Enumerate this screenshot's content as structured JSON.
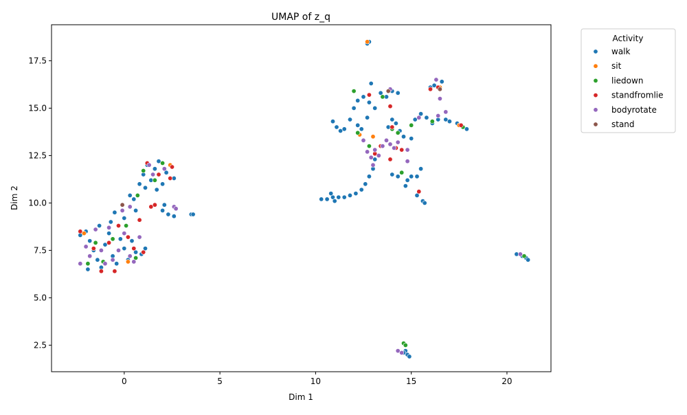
{
  "chart_data": {
    "type": "scatter",
    "title": "UMAP of z_q",
    "xlabel": "Dim 1",
    "ylabel": "Dim 2",
    "xlim": [
      -3.8,
      22.3
    ],
    "ylim": [
      1.1,
      19.4
    ],
    "xticks": [
      0,
      5,
      10,
      15,
      20
    ],
    "xtick_labels": [
      "0",
      "5",
      "10",
      "15",
      "20"
    ],
    "yticks": [
      2.5,
      5.0,
      7.5,
      10.0,
      12.5,
      15.0,
      17.5
    ],
    "ytick_labels": [
      "2.5",
      "5.0",
      "7.5",
      "10.0",
      "12.5",
      "15.0",
      "17.5"
    ],
    "grid": false,
    "legend": {
      "title": "Activity",
      "placement": "outside-upper-right"
    },
    "series": [
      {
        "name": "walk",
        "color": "#1f77b4",
        "points": [
          [
            -2.3,
            8.3
          ],
          [
            -2.0,
            8.5
          ],
          [
            -1.8,
            8.0
          ],
          [
            -1.6,
            7.5
          ],
          [
            -1.4,
            7.0
          ],
          [
            -1.2,
            6.6
          ],
          [
            -1.0,
            7.8
          ],
          [
            -0.8,
            8.4
          ],
          [
            -0.6,
            7.2
          ],
          [
            -0.4,
            6.8
          ],
          [
            -0.2,
            8.1
          ],
          [
            0.0,
            7.6
          ],
          [
            0.2,
            7.0
          ],
          [
            0.4,
            8.0
          ],
          [
            0.6,
            7.4
          ],
          [
            0.9,
            7.3
          ],
          [
            1.1,
            7.6
          ],
          [
            -1.9,
            6.5
          ],
          [
            -1.3,
            8.8
          ],
          [
            -0.7,
            9.0
          ],
          [
            -0.5,
            9.5
          ],
          [
            0.0,
            9.2
          ],
          [
            0.3,
            9.8
          ],
          [
            0.5,
            10.2
          ],
          [
            0.3,
            10.4
          ],
          [
            0.6,
            9.6
          ],
          [
            0.8,
            11.0
          ],
          [
            1.0,
            11.5
          ],
          [
            1.2,
            12.0
          ],
          [
            1.4,
            11.2
          ],
          [
            1.6,
            11.8
          ],
          [
            1.8,
            12.2
          ],
          [
            2.0,
            11.0
          ],
          [
            2.2,
            11.6
          ],
          [
            2.4,
            12.0
          ],
          [
            2.6,
            11.3
          ],
          [
            1.1,
            10.8
          ],
          [
            1.7,
            10.7
          ],
          [
            2.0,
            9.6
          ],
          [
            2.3,
            9.4
          ],
          [
            2.6,
            9.3
          ],
          [
            2.1,
            9.9
          ],
          [
            3.5,
            9.4
          ],
          [
            3.6,
            9.4
          ],
          [
            10.3,
            10.2
          ],
          [
            10.6,
            10.2
          ],
          [
            10.9,
            10.3
          ],
          [
            11.2,
            10.3
          ],
          [
            11.5,
            10.3
          ],
          [
            11.8,
            10.4
          ],
          [
            12.1,
            10.5
          ],
          [
            12.4,
            10.7
          ],
          [
            12.6,
            11.0
          ],
          [
            12.8,
            11.4
          ],
          [
            13.0,
            11.8
          ],
          [
            13.1,
            12.3
          ],
          [
            10.8,
            10.5
          ],
          [
            11.0,
            10.1
          ],
          [
            10.9,
            14.3
          ],
          [
            11.1,
            14.0
          ],
          [
            11.3,
            13.8
          ],
          [
            11.5,
            13.9
          ],
          [
            11.8,
            14.4
          ],
          [
            12.0,
            15.0
          ],
          [
            12.2,
            15.4
          ],
          [
            12.5,
            15.6
          ],
          [
            12.8,
            15.3
          ],
          [
            13.1,
            15.0
          ],
          [
            13.4,
            15.8
          ],
          [
            13.7,
            15.6
          ],
          [
            14.0,
            15.9
          ],
          [
            14.3,
            15.8
          ],
          [
            12.9,
            16.3
          ],
          [
            12.7,
            14.5
          ],
          [
            12.4,
            13.9
          ],
          [
            12.2,
            14.1
          ],
          [
            13.8,
            14.0
          ],
          [
            14.0,
            14.4
          ],
          [
            14.2,
            14.2
          ],
          [
            14.4,
            13.8
          ],
          [
            14.6,
            13.5
          ],
          [
            15.0,
            13.4
          ],
          [
            14.0,
            11.5
          ],
          [
            14.3,
            11.4
          ],
          [
            14.8,
            11.2
          ],
          [
            15.0,
            11.4
          ],
          [
            15.3,
            11.4
          ],
          [
            15.5,
            11.8
          ],
          [
            14.7,
            10.9
          ],
          [
            15.6,
            10.1
          ],
          [
            15.7,
            10.0
          ],
          [
            15.3,
            10.4
          ],
          [
            15.2,
            14.4
          ],
          [
            15.5,
            14.7
          ],
          [
            15.8,
            14.5
          ],
          [
            16.1,
            14.2
          ],
          [
            16.4,
            14.4
          ],
          [
            16.8,
            14.4
          ],
          [
            17.0,
            14.3
          ],
          [
            17.4,
            14.2
          ],
          [
            17.7,
            14.0
          ],
          [
            17.9,
            13.9
          ],
          [
            16.2,
            16.2
          ],
          [
            16.6,
            16.4
          ],
          [
            16.0,
            16.1
          ],
          [
            14.7,
            2.2
          ],
          [
            14.8,
            2.0
          ],
          [
            14.9,
            1.9
          ],
          [
            14.6,
            2.1
          ],
          [
            20.5,
            7.3
          ],
          [
            20.8,
            7.2
          ],
          [
            21.0,
            7.1
          ],
          [
            21.1,
            7.0
          ],
          [
            12.7,
            18.4
          ],
          [
            12.8,
            18.5
          ]
        ]
      },
      {
        "name": "sit",
        "color": "#ff7f0e",
        "points": [
          [
            -2.1,
            8.4
          ],
          [
            0.2,
            6.9
          ],
          [
            2.4,
            12.0
          ],
          [
            12.7,
            18.5
          ],
          [
            12.3,
            13.6
          ],
          [
            13.0,
            13.5
          ],
          [
            16.5,
            16.1
          ],
          [
            17.5,
            14.1
          ]
        ]
      },
      {
        "name": "liedown",
        "color": "#2ca02c",
        "points": [
          [
            -1.9,
            6.8
          ],
          [
            -1.5,
            7.9
          ],
          [
            -1.1,
            6.9
          ],
          [
            -0.6,
            8.1
          ],
          [
            0.1,
            8.8
          ],
          [
            0.7,
            10.4
          ],
          [
            0.6,
            7.1
          ],
          [
            1.0,
            11.7
          ],
          [
            1.6,
            11.2
          ],
          [
            2.0,
            12.1
          ],
          [
            12.0,
            15.9
          ],
          [
            12.2,
            13.7
          ],
          [
            12.8,
            13.0
          ],
          [
            13.5,
            15.6
          ],
          [
            14.0,
            13.9
          ],
          [
            14.3,
            13.7
          ],
          [
            14.5,
            11.6
          ],
          [
            15.0,
            14.1
          ],
          [
            16.1,
            14.3
          ],
          [
            17.7,
            14.0
          ],
          [
            14.6,
            2.6
          ],
          [
            14.7,
            2.5
          ],
          [
            20.9,
            7.2
          ]
        ]
      },
      {
        "name": "standfromlie",
        "color": "#d62728",
        "points": [
          [
            -2.3,
            8.5
          ],
          [
            -1.6,
            7.6
          ],
          [
            -1.2,
            6.4
          ],
          [
            -0.8,
            7.9
          ],
          [
            -0.5,
            6.4
          ],
          [
            -0.3,
            8.8
          ],
          [
            0.2,
            8.2
          ],
          [
            0.5,
            7.6
          ],
          [
            0.8,
            9.1
          ],
          [
            1.0,
            7.4
          ],
          [
            1.4,
            9.8
          ],
          [
            1.6,
            9.9
          ],
          [
            1.2,
            12.1
          ],
          [
            1.8,
            11.5
          ],
          [
            2.4,
            11.3
          ],
          [
            2.5,
            11.9
          ],
          [
            12.8,
            15.7
          ],
          [
            13.1,
            12.6
          ],
          [
            13.4,
            13.0
          ],
          [
            13.9,
            12.3
          ],
          [
            13.9,
            15.1
          ],
          [
            14.0,
            14.0
          ],
          [
            14.2,
            12.9
          ],
          [
            14.5,
            12.8
          ],
          [
            15.4,
            10.6
          ],
          [
            16.0,
            16.0
          ],
          [
            16.4,
            16.1
          ],
          [
            17.6,
            14.1
          ]
        ]
      },
      {
        "name": "bodyrotate",
        "color": "#9467bd",
        "points": [
          [
            -2.3,
            6.8
          ],
          [
            -2.0,
            7.7
          ],
          [
            -1.8,
            7.2
          ],
          [
            -1.5,
            8.6
          ],
          [
            -1.2,
            7.5
          ],
          [
            -1.0,
            6.8
          ],
          [
            -0.8,
            8.7
          ],
          [
            -0.6,
            7.0
          ],
          [
            -0.3,
            7.5
          ],
          [
            0.0,
            8.4
          ],
          [
            0.3,
            7.2
          ],
          [
            0.5,
            6.9
          ],
          [
            0.8,
            8.2
          ],
          [
            -0.1,
            9.6
          ],
          [
            0.3,
            9.8
          ],
          [
            1.3,
            12.0
          ],
          [
            1.5,
            11.5
          ],
          [
            2.1,
            11.8
          ],
          [
            2.6,
            9.8
          ],
          [
            2.7,
            9.7
          ],
          [
            12.5,
            13.3
          ],
          [
            12.7,
            12.7
          ],
          [
            12.9,
            12.4
          ],
          [
            13.1,
            12.8
          ],
          [
            13.3,
            12.5
          ],
          [
            13.5,
            13.0
          ],
          [
            13.7,
            13.3
          ],
          [
            13.9,
            13.1
          ],
          [
            14.1,
            12.9
          ],
          [
            14.3,
            13.2
          ],
          [
            13.0,
            12.0
          ],
          [
            14.8,
            12.8
          ],
          [
            14.8,
            12.2
          ],
          [
            13.9,
            16.0
          ],
          [
            16.3,
            16.5
          ],
          [
            16.5,
            15.5
          ],
          [
            16.8,
            14.8
          ],
          [
            15.4,
            14.5
          ],
          [
            16.4,
            14.6
          ],
          [
            14.3,
            2.2
          ],
          [
            14.5,
            2.1
          ],
          [
            20.7,
            7.3
          ]
        ]
      },
      {
        "name": "stand",
        "color": "#8c564b",
        "points": [
          [
            -0.1,
            9.9
          ],
          [
            13.8,
            15.9
          ],
          [
            16.5,
            16.0
          ]
        ]
      }
    ]
  }
}
